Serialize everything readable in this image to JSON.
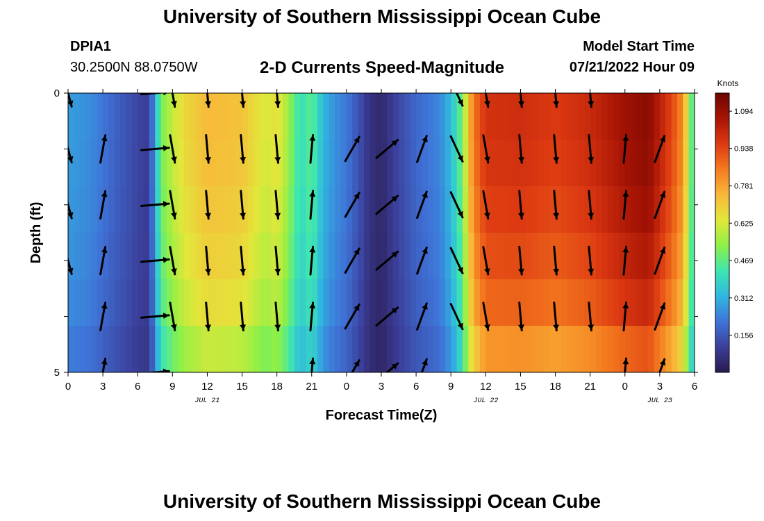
{
  "header": {
    "title_top": "University of Southern Mississippi Ocean Cube",
    "title_bottom": "University of Southern Mississippi Ocean Cube",
    "station_id": "DPIA1",
    "station_coords": "30.2500N  88.0750W",
    "plot_title": "2-D Currents Speed-Magnitude",
    "model_start_label": "Model Start Time",
    "model_start_value": "07/21/2022 Hour 09"
  },
  "colors": {
    "colormap": [
      "#2a1b4e",
      "#3b3f9a",
      "#3f74d8",
      "#2fb7e0",
      "#3ee6b0",
      "#8ef046",
      "#e2e73a",
      "#f8b83a",
      "#f47a1e",
      "#dd3a12",
      "#a81405",
      "#6c0500"
    ]
  },
  "chart_data": {
    "type": "heatmap",
    "xlabel": "Forecast Time(Z)",
    "ylabel": "Depth (ft)",
    "x_tick_labels": [
      "0",
      "3",
      "6",
      "9",
      "12",
      "15",
      "18",
      "21",
      "0",
      "3",
      "6",
      "9",
      "12",
      "15",
      "18",
      "21",
      "0",
      "3",
      "6"
    ],
    "date_labels": [
      {
        "text": "JUL 21",
        "at_hour": 12
      },
      {
        "text": "JUL 22",
        "at_hour": 36
      },
      {
        "text": "JUL 23",
        "at_hour": 51
      }
    ],
    "x_range_hours": [
      0,
      54
    ],
    "y_range": [
      0,
      5
    ],
    "y_tick_labels": [
      "0",
      "5"
    ],
    "depth_levels": [
      0.5,
      1.5,
      2.5,
      3.5,
      4.5
    ],
    "colorbar": {
      "label": "Knots",
      "tick_labels": [
        "0.156",
        "0.312",
        "0.469",
        "0.625",
        "0.781",
        "0.938",
        "1.094"
      ],
      "min": 0.0,
      "max": 1.17
    },
    "speed_profile": {
      "hours": [
        0,
        2,
        4,
        6,
        7,
        7.5,
        8,
        9,
        10,
        12,
        15,
        17,
        18,
        19,
        20,
        21,
        22,
        23,
        24,
        25,
        26,
        27,
        28,
        30,
        32,
        33,
        34,
        34.5,
        35,
        36,
        39,
        42,
        45,
        48,
        50,
        51,
        52,
        53,
        53.5,
        54
      ],
      "values": [
        0.28,
        0.25,
        0.18,
        0.12,
        0.1,
        0.3,
        0.5,
        0.6,
        0.67,
        0.74,
        0.72,
        0.62,
        0.66,
        0.55,
        0.4,
        0.47,
        0.32,
        0.26,
        0.22,
        0.15,
        0.07,
        0.04,
        0.1,
        0.19,
        0.24,
        0.33,
        0.5,
        0.72,
        0.86,
        0.98,
        0.99,
        0.96,
        1.0,
        1.08,
        1.12,
        1.03,
        0.94,
        0.82,
        0.58,
        0.38
      ]
    },
    "depth_factor": [
      1.0,
      0.99,
      0.97,
      0.94,
      0.9,
      0.82
    ],
    "vectors": {
      "hours": [
        0,
        3,
        7.5,
        9,
        12,
        15,
        18,
        21,
        24.5,
        27.5,
        30.5,
        33.5,
        36,
        39,
        42,
        45,
        48,
        51
      ],
      "bearings_deg": [
        165,
        10,
        85,
        170,
        175,
        175,
        175,
        5,
        30,
        50,
        20,
        155,
        170,
        175,
        175,
        175,
        5,
        20
      ],
      "rows": [
        {
          "depth": 0.0,
          "mask": [
            1,
            0,
            1,
            1,
            1,
            1,
            1,
            0,
            0,
            0,
            0,
            1,
            1,
            1,
            1,
            1,
            0,
            0
          ]
        },
        {
          "depth": 1.0,
          "mask": [
            1,
            1,
            1,
            1,
            1,
            1,
            1,
            1,
            1,
            1,
            1,
            1,
            1,
            1,
            1,
            1,
            1,
            1
          ]
        },
        {
          "depth": 2.0,
          "mask": [
            1,
            1,
            1,
            1,
            1,
            1,
            1,
            1,
            1,
            1,
            1,
            1,
            1,
            1,
            1,
            1,
            1,
            1
          ]
        },
        {
          "depth": 3.0,
          "mask": [
            1,
            1,
            1,
            1,
            1,
            1,
            1,
            1,
            1,
            1,
            1,
            1,
            1,
            1,
            1,
            1,
            1,
            1
          ]
        },
        {
          "depth": 4.0,
          "mask": [
            0,
            1,
            1,
            1,
            1,
            1,
            1,
            1,
            1,
            1,
            1,
            1,
            1,
            1,
            1,
            1,
            1,
            1
          ]
        },
        {
          "depth": 5.0,
          "mask": [
            0,
            1,
            1,
            0,
            0,
            0,
            0,
            1,
            1,
            1,
            1,
            0,
            0,
            0,
            0,
            0,
            1,
            1
          ]
        }
      ]
    }
  }
}
